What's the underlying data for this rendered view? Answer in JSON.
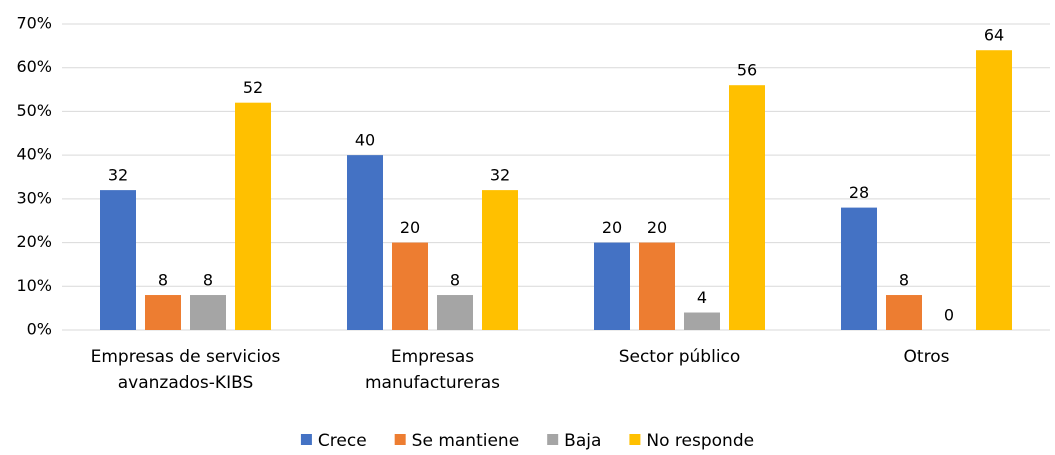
{
  "chart_data": {
    "type": "bar",
    "categories": [
      "Empresas de servicios avanzados-KIBS",
      "Empresas manufactureras",
      "Sector público",
      "Otros"
    ],
    "series": [
      {
        "name": "Crece",
        "color": "#4472c4",
        "values": [
          32,
          40,
          20,
          28
        ]
      },
      {
        "name": "Se mantiene",
        "color": "#ed7d31",
        "values": [
          8,
          20,
          20,
          8
        ]
      },
      {
        "name": "Baja",
        "color": "#a5a5a5",
        "values": [
          8,
          8,
          4,
          0
        ]
      },
      {
        "name": "No responde",
        "color": "#ffc000",
        "values": [
          52,
          32,
          56,
          64
        ]
      }
    ],
    "ylim": [
      0,
      70
    ],
    "yticks": [
      {
        "value": 0,
        "label": "0%"
      },
      {
        "value": 10,
        "label": "10%"
      },
      {
        "value": 20,
        "label": "20%"
      },
      {
        "value": 30,
        "label": "30%"
      },
      {
        "value": 40,
        "label": "40%"
      },
      {
        "value": 50,
        "label": "50%"
      },
      {
        "value": 60,
        "label": "60%"
      },
      {
        "value": 70,
        "label": "70%"
      }
    ],
    "grid": true,
    "legend": "bottom"
  }
}
